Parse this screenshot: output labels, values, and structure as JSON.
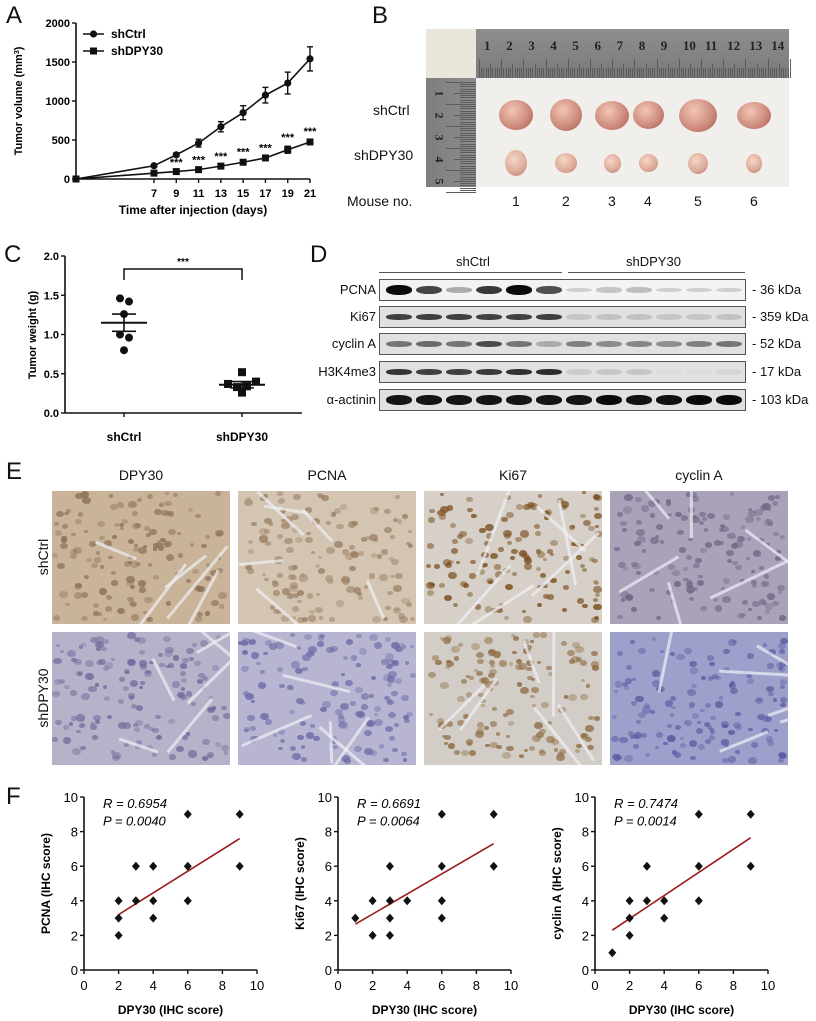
{
  "panels": {
    "A": {
      "letter": "A"
    },
    "B": {
      "letter": "B",
      "row_labels": [
        "shCtrl",
        "shDPY30"
      ],
      "mouse_label": "Mouse no.",
      "mouse_numbers": [
        "1",
        "2",
        "3",
        "4",
        "5",
        "6"
      ],
      "ruler_numbers": [
        "1",
        "2",
        "3",
        "4",
        "5",
        "6",
        "7",
        "8",
        "9",
        "10",
        "11",
        "12",
        "13",
        "14"
      ]
    },
    "C": {
      "letter": "C"
    },
    "D": {
      "letter": "D",
      "groups": [
        "shCtrl",
        "shDPY30"
      ],
      "rows": [
        {
          "label": "PCNA",
          "kda": "- 36 kDa"
        },
        {
          "label": "Ki67",
          "kda": "- 359 kDa"
        },
        {
          "label": "cyclin A",
          "kda": "- 52 kDa"
        },
        {
          "label": "H3K4me3",
          "kda": "- 17 kDa"
        },
        {
          "label": "α-actinin",
          "kda": "- 103 kDa"
        }
      ]
    },
    "E": {
      "letter": "E",
      "columns": [
        "DPY30",
        "PCNA",
        "Ki67",
        "cyclin A"
      ],
      "rows": [
        "shCtrl",
        "shDPY30"
      ]
    },
    "F": {
      "letter": "F"
    }
  },
  "colors": {
    "regression": "#9b1b1e",
    "ink": "#111111"
  },
  "chart_data": [
    {
      "id": "A",
      "type": "line",
      "title": "",
      "xlabel": "Time after injection (days)",
      "ylabel": "Tumor volume (mm3)",
      "ylim": [
        0,
        2000
      ],
      "yticks": [
        0,
        500,
        1000,
        1500,
        2000
      ],
      "xticks": [
        7,
        9,
        11,
        13,
        15,
        17,
        19,
        21
      ],
      "legend": [
        "shCtrl",
        "shDPY30"
      ],
      "legend_position": "top-left",
      "x": [
        0,
        7,
        9,
        11,
        13,
        15,
        17,
        19,
        21
      ],
      "series": [
        {
          "name": "shCtrl",
          "marker": "circle",
          "values": [
            0,
            170,
            310,
            460,
            670,
            850,
            1075,
            1230,
            1540
          ],
          "error": [
            0,
            15,
            25,
            50,
            65,
            90,
            100,
            140,
            155
          ]
        },
        {
          "name": "shDPY30",
          "marker": "square",
          "values": [
            0,
            75,
            95,
            120,
            165,
            215,
            270,
            375,
            475
          ],
          "error": [
            0,
            10,
            10,
            12,
            15,
            20,
            20,
            45,
            25
          ]
        }
      ],
      "annotations": [
        {
          "x": 9,
          "text": "***"
        },
        {
          "x": 11,
          "text": "***"
        },
        {
          "x": 13,
          "text": "***"
        },
        {
          "x": 15,
          "text": "***"
        },
        {
          "x": 17,
          "text": "***"
        },
        {
          "x": 19,
          "text": "***"
        },
        {
          "x": 21,
          "text": "***"
        }
      ]
    },
    {
      "id": "C",
      "type": "scatter",
      "title": "",
      "xlabel": "",
      "ylabel": "Tumor weight (g)",
      "ylim": [
        0,
        2.0
      ],
      "yticks": [
        0.0,
        0.5,
        1.0,
        1.5,
        2.0
      ],
      "categories": [
        "shCtrl",
        "shDPY30"
      ],
      "series": [
        {
          "name": "shCtrl",
          "marker": "circle",
          "points": [
            1.46,
            1.42,
            1.26,
            1.0,
            0.96,
            0.8
          ],
          "mean": 1.15,
          "sem_upper": 1.26,
          "sem_lower": 1.04
        },
        {
          "name": "shDPY30",
          "marker": "square",
          "points": [
            0.52,
            0.4,
            0.37,
            0.34,
            0.33,
            0.26
          ],
          "mean": 0.36,
          "sem_upper": 0.4,
          "sem_lower": 0.32
        }
      ],
      "annotations": [
        {
          "text": "***",
          "between": [
            "shCtrl",
            "shDPY30"
          ]
        }
      ]
    },
    {
      "id": "F1",
      "type": "scatter",
      "xlabel": "DPY30 (IHC score)",
      "ylabel": "PCNA (IHC score)",
      "xlim": [
        0,
        10
      ],
      "ylim": [
        0,
        10
      ],
      "xticks": [
        0,
        2,
        4,
        6,
        8,
        10
      ],
      "yticks": [
        0,
        2,
        4,
        6,
        8,
        10
      ],
      "stats": {
        "R": "R = 0.6954",
        "P": "P = 0.0040"
      },
      "points": [
        [
          2,
          2
        ],
        [
          2,
          3
        ],
        [
          2,
          4
        ],
        [
          3,
          4
        ],
        [
          3,
          6
        ],
        [
          4,
          3
        ],
        [
          4,
          4
        ],
        [
          4,
          6
        ],
        [
          6,
          4
        ],
        [
          6,
          6
        ],
        [
          6,
          9
        ],
        [
          9,
          6
        ],
        [
          9,
          9
        ]
      ],
      "regression": {
        "x": [
          2,
          9
        ],
        "y": [
          3.2,
          7.6
        ]
      }
    },
    {
      "id": "F2",
      "type": "scatter",
      "xlabel": "DPY30 (IHC score)",
      "ylabel": "Ki67 (IHC score)",
      "xlim": [
        0,
        10
      ],
      "ylim": [
        0,
        10
      ],
      "xticks": [
        0,
        2,
        4,
        6,
        8,
        10
      ],
      "yticks": [
        0,
        2,
        4,
        6,
        8,
        10
      ],
      "stats": {
        "R": "R = 0.6691",
        "P": "P = 0.0064"
      },
      "points": [
        [
          1,
          3
        ],
        [
          2,
          2
        ],
        [
          2,
          4
        ],
        [
          3,
          2
        ],
        [
          3,
          3
        ],
        [
          3,
          4
        ],
        [
          3,
          6
        ],
        [
          4,
          4
        ],
        [
          6,
          3
        ],
        [
          6,
          4
        ],
        [
          6,
          6
        ],
        [
          6,
          9
        ],
        [
          9,
          6
        ],
        [
          9,
          9
        ]
      ],
      "regression": {
        "x": [
          1,
          9
        ],
        "y": [
          2.65,
          7.3
        ]
      }
    },
    {
      "id": "F3",
      "type": "scatter",
      "xlabel": "DPY30 (IHC score)",
      "ylabel": "cyclin A (IHC score)",
      "xlim": [
        0,
        10
      ],
      "ylim": [
        0,
        10
      ],
      "xticks": [
        0,
        2,
        4,
        6,
        8,
        10
      ],
      "yticks": [
        0,
        2,
        4,
        6,
        8,
        10
      ],
      "stats": {
        "R": "R = 0.7474",
        "P": "P = 0.0014"
      },
      "points": [
        [
          1,
          1
        ],
        [
          2,
          2
        ],
        [
          2,
          3
        ],
        [
          2,
          4
        ],
        [
          3,
          4
        ],
        [
          3,
          6
        ],
        [
          4,
          3
        ],
        [
          4,
          4
        ],
        [
          6,
          4
        ],
        [
          6,
          6
        ],
        [
          6,
          9
        ],
        [
          9,
          6
        ],
        [
          9,
          9
        ]
      ],
      "regression": {
        "x": [
          1,
          9
        ],
        "y": [
          2.3,
          7.65
        ]
      }
    }
  ]
}
